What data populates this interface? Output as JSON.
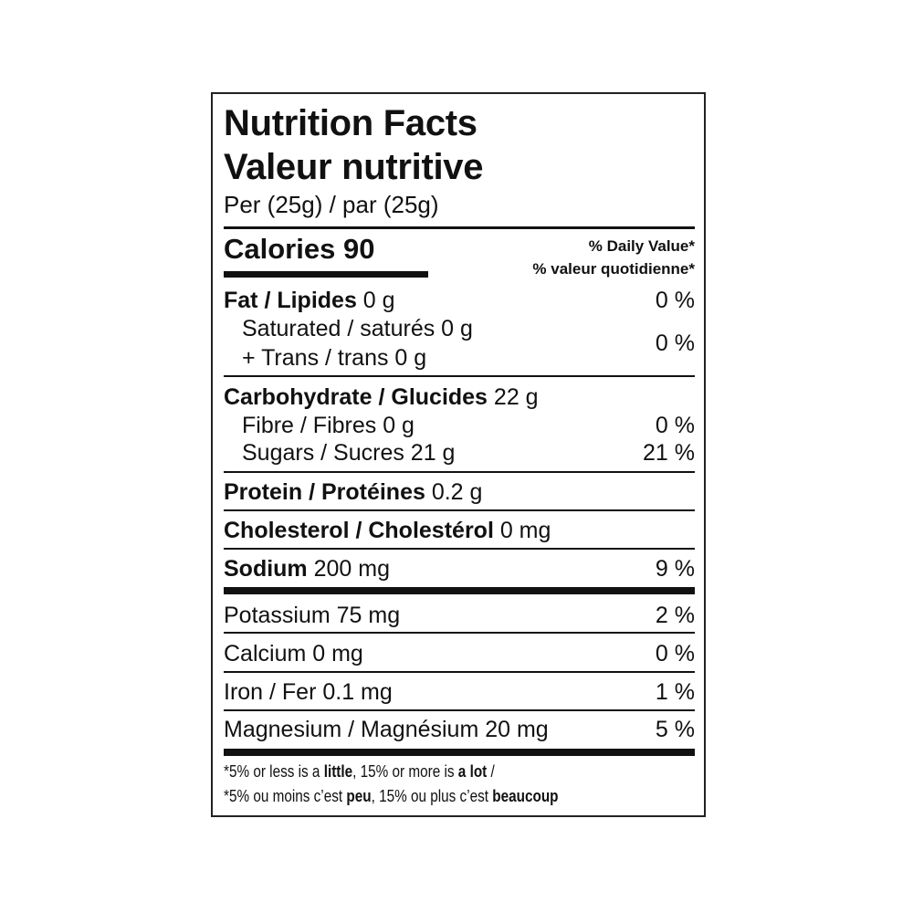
{
  "title_en": "Nutrition Facts",
  "title_fr": "Valeur nutritive",
  "serving": "Per (25g) / par (25g)",
  "calories": "Calories 90",
  "daily_value_en": "% Daily Value*",
  "daily_value_fr": "% valeur quotidienne*",
  "rows": {
    "fat": {
      "label": "Fat / Lipides",
      "amount": " 0 g",
      "pct": "0 %"
    },
    "saturated": {
      "label": "Saturated / saturés 0 g"
    },
    "trans": {
      "label": "+ Trans / trans 0 g",
      "pct": "0 %"
    },
    "carb": {
      "label": "Carbohydrate / Glucides",
      "amount": " 22 g"
    },
    "fibre": {
      "label": "Fibre / Fibres 0 g",
      "pct": "0 %"
    },
    "sugars": {
      "label": "Sugars / Sucres 21 g",
      "pct": "21 %"
    },
    "protein": {
      "label": "Protein / Protéines",
      "amount": " 0.2 g"
    },
    "cholesterol": {
      "label": "Cholesterol / Cholestérol",
      "amount": " 0 mg"
    },
    "sodium": {
      "label": "Sodium",
      "amount": " 200 mg",
      "pct": "9 %"
    },
    "potassium": {
      "label": "Potassium 75 mg",
      "pct": "2 %"
    },
    "calcium": {
      "label": "Calcium 0 mg",
      "pct": "0 %"
    },
    "iron": {
      "label": "Iron / Fer 0.1 mg",
      "pct": "1 %"
    },
    "magnesium": {
      "label": "Magnesium / Magnésium 20 mg",
      "pct": "5 %"
    }
  },
  "footnote": {
    "en": [
      "*5% or less is a ",
      "little",
      ", 15% or more is ",
      "a lot",
      " /"
    ],
    "fr": [
      "*5% ou moins c’est ",
      "peu",
      ", 15% ou plus c’est ",
      "beaucoup"
    ]
  }
}
